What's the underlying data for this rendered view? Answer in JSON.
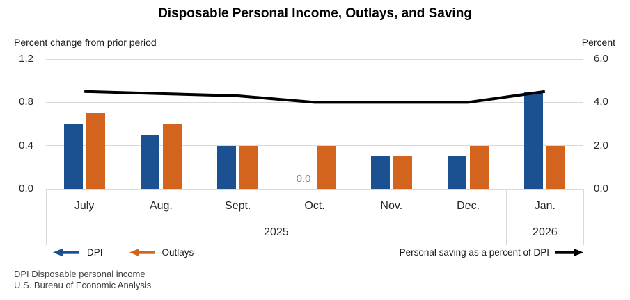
{
  "chart_data": {
    "type": "bar+line",
    "title": "Disposable Personal Income, Outlays, and Saving",
    "categories": [
      "July",
      "Aug.",
      "Sept.",
      "Oct.",
      "Nov.",
      "Dec.",
      "Jan."
    ],
    "year_groups": [
      {
        "label": "2025",
        "start": 0,
        "end": 5
      },
      {
        "label": "2026",
        "start": 6,
        "end": 6
      }
    ],
    "left_axis": {
      "label": "Percent change from prior period",
      "ticks": [
        "1.2",
        "0.8",
        "0.4",
        "0.0"
      ],
      "ylim": [
        0,
        1.2
      ]
    },
    "right_axis": {
      "label": "Percent",
      "ticks": [
        "6.0",
        "4.0",
        "2.0",
        "0.0"
      ],
      "ylim": [
        0,
        6.0
      ]
    },
    "series": [
      {
        "name": "DPI",
        "type": "bar",
        "axis": "left",
        "color": "#1b5091",
        "values": [
          0.6,
          0.5,
          0.4,
          0.0,
          0.3,
          0.3,
          0.9
        ]
      },
      {
        "name": "Outlays",
        "type": "bar",
        "axis": "left",
        "color": "#d2641e",
        "values": [
          0.7,
          0.6,
          0.4,
          0.4,
          0.3,
          0.4,
          0.4
        ]
      },
      {
        "name": "Personal saving as a percent of DPI",
        "type": "line",
        "axis": "right",
        "color": "#000000",
        "values": [
          4.5,
          4.4,
          4.3,
          4.0,
          4.0,
          4.0,
          4.5
        ]
      }
    ],
    "data_labels": [
      {
        "series": "DPI",
        "category_index": 3,
        "text": "0.0",
        "color": "#757575"
      }
    ],
    "grid": true,
    "legend_position": "bottom"
  },
  "footnotes": [
    "DPI Disposable personal income",
    "U.S. Bureau of Economic Analysis"
  ],
  "colors": {
    "grid": "#d9d9d9",
    "text_dark": "#262626"
  }
}
